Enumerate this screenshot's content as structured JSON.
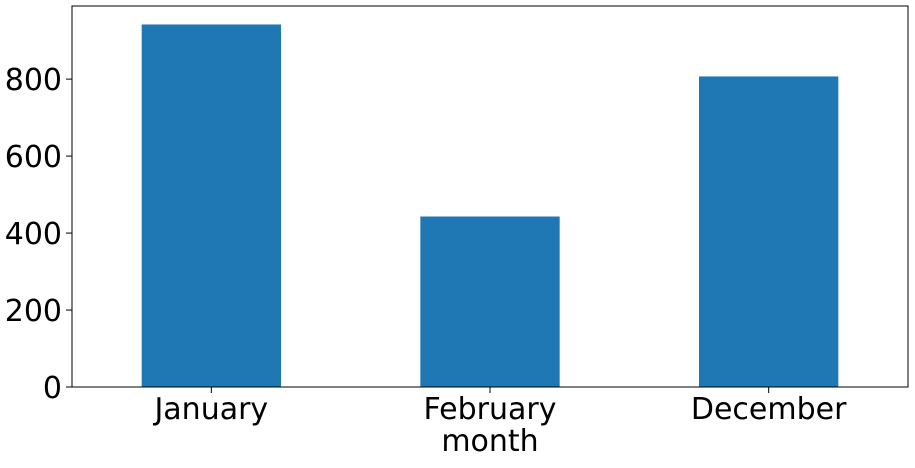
{
  "chart_data": {
    "type": "bar",
    "categories": [
      "January",
      "February",
      "December"
    ],
    "values": [
      942,
      443,
      807
    ],
    "xlabel": "month",
    "ylabel": "",
    "ylim": [
      0,
      990
    ],
    "yticks": [
      0,
      200,
      400,
      600,
      800
    ],
    "bar_color": "#1f77b4",
    "grid": false,
    "legend": "none"
  }
}
